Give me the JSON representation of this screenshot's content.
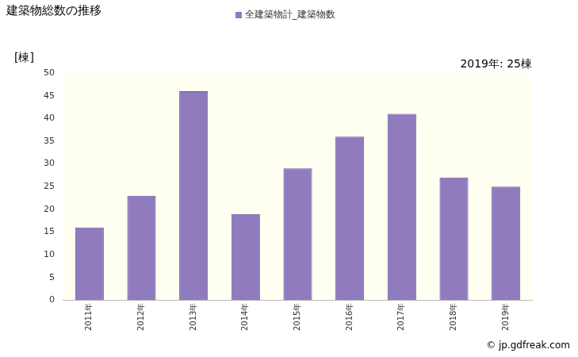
{
  "chart_data": {
    "type": "bar",
    "title": "建築物総数の推移",
    "y_label": "[棟]",
    "annotations": [
      "2019年: 25棟"
    ],
    "source": "© jp.gdfreak.com",
    "categories": [
      "2011年",
      "2012年",
      "2013年",
      "2014年",
      "2015年",
      "2016年",
      "2017年",
      "2018年",
      "2019年"
    ],
    "series": [
      {
        "name": "全建築物計_建築物数",
        "color": "#8f7bbd",
        "values": [
          16,
          23,
          46,
          19,
          29,
          36,
          41,
          27,
          25
        ]
      }
    ],
    "ylim": [
      0,
      50
    ],
    "yticks": [
      0,
      5,
      10,
      15,
      20,
      25,
      30,
      35,
      40,
      45,
      50
    ],
    "grid": false,
    "legend": "top"
  }
}
